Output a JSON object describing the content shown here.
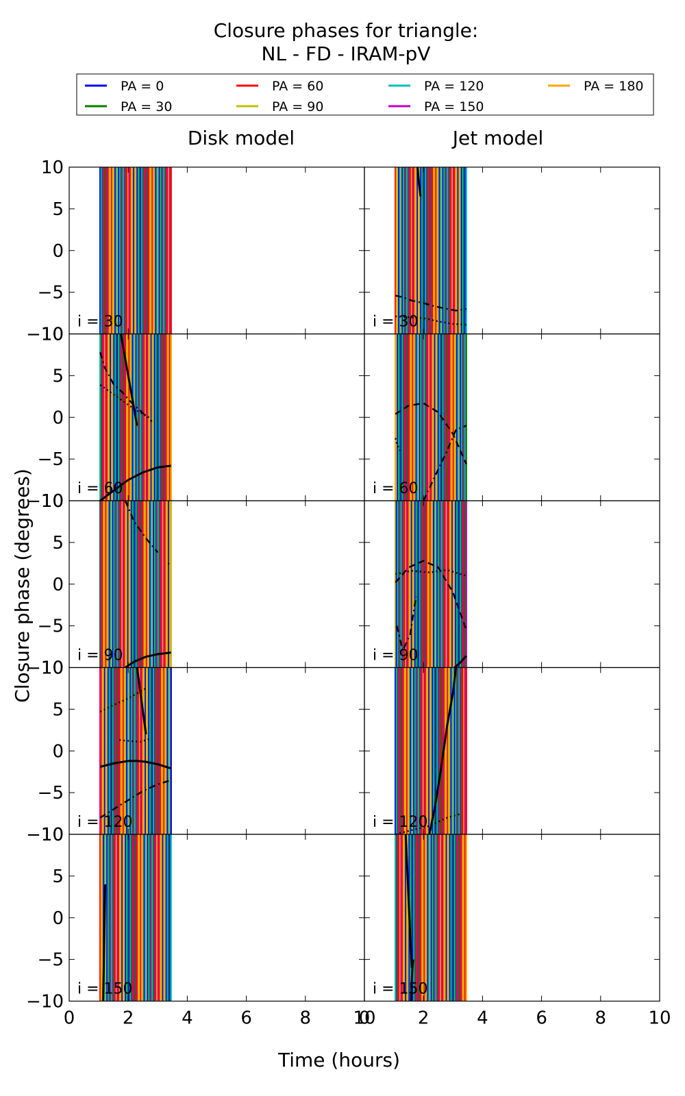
{
  "chart_data": {
    "type": "line",
    "title": "Closure phases for triangle:",
    "subtitle": "NL - FD - IRAM-pV",
    "xlabel": "Time (hours)",
    "ylabel": "Closure phase (degrees)",
    "xlim": [
      0,
      10
    ],
    "ylim": [
      -10,
      10
    ],
    "xticks": [
      0,
      2,
      4,
      6,
      8,
      10
    ],
    "yticks": [
      10,
      5,
      0,
      -5,
      -10
    ],
    "legend_position": "top",
    "legend": [
      {
        "name": "PA = 0",
        "color": "#0000ff"
      },
      {
        "name": "PA = 30",
        "color": "#008000"
      },
      {
        "name": "PA = 60",
        "color": "#ff0000"
      },
      {
        "name": "PA = 90",
        "color": "#bfbf00"
      },
      {
        "name": "PA = 120",
        "color": "#00bfbf"
      },
      {
        "name": "PA = 150",
        "color": "#bf00bf"
      },
      {
        "name": "PA = 180",
        "color": "#ffa500"
      }
    ],
    "columns": [
      "Disk model",
      "Jet model"
    ],
    "rows": [
      "i = 30",
      "i = 60",
      "i = 90",
      "i = 120",
      "i = 150"
    ],
    "panels": [
      {
        "column": 0,
        "row": 0,
        "black_curves": []
      },
      {
        "column": 1,
        "row": 0,
        "black_curves": [
          {
            "style": "solid",
            "x": [
              1.8,
              1.85,
              1.9
            ],
            "y": [
              10,
              8,
              6.5
            ]
          },
          {
            "style": "dashdot",
            "x": [
              1.05,
              1.3,
              1.6,
              2.0,
              2.4,
              2.8,
              3.1,
              3.45
            ],
            "y": [
              -5.4,
              -5.6,
              -6.0,
              -6.3,
              -6.7,
              -7.0,
              -7.2,
              -7.0
            ]
          },
          {
            "style": "dotted",
            "x": [
              1.05,
              1.5,
              2.0,
              2.5,
              3.0,
              3.45
            ],
            "y": [
              -7.9,
              -8.0,
              -8.1,
              -8.5,
              -8.8,
              -8.9
            ]
          }
        ]
      },
      {
        "column": 0,
        "row": 1,
        "black_curves": [
          {
            "style": "solid",
            "x": [
              1.05,
              1.5,
              2.0,
              2.5,
              3.0,
              3.45
            ],
            "y": [
              -10.0,
              -8.8,
              -7.5,
              -6.6,
              -6.0,
              -5.8
            ]
          },
          {
            "style": "solid",
            "x": [
              1.75,
              1.9,
              2.1,
              2.3
            ],
            "y": [
              10,
              7.0,
              3.0,
              -1.0
            ]
          },
          {
            "style": "dashdot",
            "x": [
              1.05,
              1.2,
              1.5,
              1.8,
              2.1,
              2.5,
              2.8
            ],
            "y": [
              7.8,
              6.0,
              4.0,
              3.0,
              1.8,
              0.5,
              -0.5
            ]
          },
          {
            "style": "dotted",
            "x": [
              1.05,
              1.4,
              1.8,
              2.2,
              2.7
            ],
            "y": [
              3.9,
              3.0,
              2.0,
              1.0,
              0.0
            ]
          }
        ]
      },
      {
        "column": 1,
        "row": 1,
        "black_curves": [
          {
            "style": "dashed",
            "x": [
              1.05,
              1.5,
              2.0,
              2.5,
              3.0,
              3.45
            ],
            "y": [
              0.4,
              1.4,
              1.7,
              0.6,
              -2.0,
              -5.6
            ]
          },
          {
            "style": "dashdot",
            "x": [
              2.0,
              2.4,
              2.8,
              3.1,
              3.45
            ],
            "y": [
              -10.0,
              -7.0,
              -4.0,
              -1.5,
              -1.0
            ]
          },
          {
            "style": "dotted",
            "x": [
              1.05,
              1.1,
              1.2
            ],
            "y": [
              -2.5,
              -3.2,
              -4.0
            ]
          }
        ]
      },
      {
        "column": 0,
        "row": 2,
        "black_curves": [
          {
            "style": "solid",
            "x": [
              1.9,
              2.2,
              2.6,
              3.0,
              3.45
            ],
            "y": [
              -10.0,
              -9.3,
              -8.7,
              -8.4,
              -8.2
            ]
          },
          {
            "style": "dashdot",
            "x": [
              1.9,
              2.2,
              2.6,
              3.0
            ],
            "y": [
              10,
              7.5,
              5.5,
              3.8
            ]
          },
          {
            "style": "dotted",
            "x": [
              3.35,
              3.45
            ],
            "y": [
              2.5,
              2.2
            ]
          }
        ]
      },
      {
        "column": 1,
        "row": 2,
        "black_curves": [
          {
            "style": "dashed",
            "x": [
              1.05,
              1.5,
              2.0,
              2.5,
              3.0,
              3.45
            ],
            "y": [
              0.2,
              2.0,
              2.8,
              2.0,
              -1.0,
              -5.5
            ]
          },
          {
            "style": "dotted",
            "x": [
              1.05,
              1.6,
              2.2,
              2.8,
              3.45
            ],
            "y": [
              1.2,
              1.6,
              1.4,
              1.7,
              1.0
            ]
          },
          {
            "style": "dashdot",
            "x": [
              1.1,
              1.3,
              1.55,
              1.75
            ],
            "y": [
              -5.0,
              -8.0,
              -6.0,
              -1.5
            ]
          },
          {
            "style": "solid",
            "x": [
              3.05,
              3.25,
              3.45
            ],
            "y": [
              -10.0,
              -9.4,
              -8.6
            ]
          }
        ]
      },
      {
        "column": 0,
        "row": 3,
        "black_curves": [
          {
            "style": "solid",
            "x": [
              1.05,
              1.5,
              2.0,
              2.3,
              2.6,
              3.0,
              3.45
            ],
            "y": [
              -1.9,
              -1.5,
              -1.2,
              -1.2,
              -1.3,
              -1.6,
              -2.1
            ]
          },
          {
            "style": "dashdot",
            "x": [
              1.05,
              1.5,
              2.0,
              2.5,
              3.0,
              3.45
            ],
            "y": [
              -8.0,
              -7.0,
              -5.9,
              -4.8,
              -4.0,
              -3.5
            ]
          },
          {
            "style": "solid",
            "x": [
              2.3,
              2.45,
              2.6
            ],
            "y": [
              10,
              6.0,
              2.0
            ]
          },
          {
            "style": "dotted",
            "x": [
              1.05,
              1.5,
              2.0,
              2.6
            ],
            "y": [
              4.7,
              5.5,
              6.3,
              7.5
            ]
          },
          {
            "style": "dotted",
            "x": [
              1.7,
              2.0,
              2.4,
              2.7
            ],
            "y": [
              1.3,
              1.2,
              1.1,
              1.4
            ]
          }
        ]
      },
      {
        "column": 1,
        "row": 3,
        "black_curves": [
          {
            "style": "solid",
            "x": [
              2.2,
              2.4,
              2.6,
              2.8,
              3.0,
              3.1
            ],
            "y": [
              -10.0,
              -6.5,
              -2.0,
              3.0,
              7.0,
              10
            ]
          },
          {
            "style": "dotted",
            "x": [
              1.05,
              1.6,
              2.2,
              2.8,
              3.3
            ],
            "y": [
              -10.0,
              -9.5,
              -9.0,
              -8.0,
              -7.5
            ]
          }
        ]
      },
      {
        "column": 0,
        "row": 4,
        "black_curves": [
          {
            "style": "solid",
            "x": [
              1.15,
              1.18,
              1.22
            ],
            "y": [
              -10.0,
              -4.0,
              4.0
            ]
          }
        ]
      },
      {
        "column": 1,
        "row": 4,
        "black_curves": [
          {
            "style": "solid",
            "x": [
              1.4,
              1.5,
              1.6
            ],
            "y": [
              10,
              2.0,
              -6.0
            ]
          },
          {
            "style": "solid",
            "x": [
              1.58,
              1.6,
              1.65
            ],
            "y": [
              -10.0,
              -7.5,
              -5.0
            ]
          }
        ]
      }
    ]
  }
}
